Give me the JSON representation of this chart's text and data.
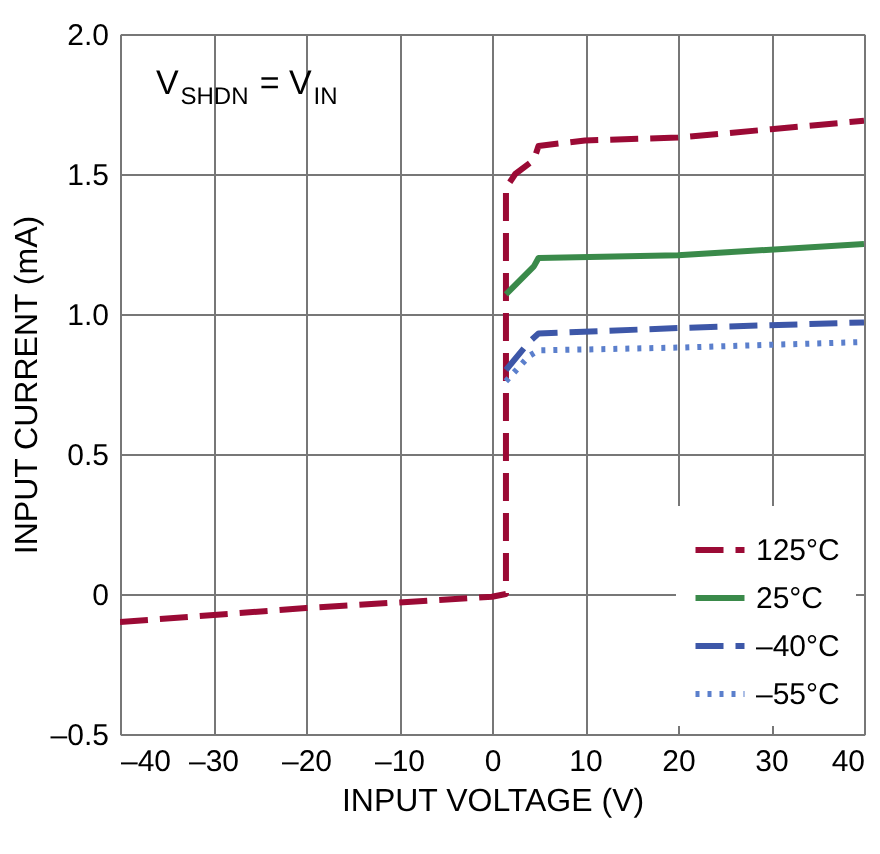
{
  "chart_data": {
    "type": "line",
    "xlabel": "INPUT VOLTAGE (V)",
    "ylabel": "INPUT CURRENT (mA)",
    "annotations": [
      "V$_{SHDN}$ = V$_{IN}$"
    ],
    "xlim": [
      -40,
      40
    ],
    "ylim": [
      -0.5,
      2.0
    ],
    "xticks": [
      {
        "value": -40,
        "label": "–40"
      },
      {
        "value": -30,
        "label": "–30"
      },
      {
        "value": -20,
        "label": "–20"
      },
      {
        "value": -10,
        "label": "–10"
      },
      0,
      10,
      20,
      30,
      40
    ],
    "yticks": [
      {
        "value": -0.5,
        "label": "–0.5"
      },
      0,
      0.5,
      {
        "value": 1,
        "label": "1.0"
      },
      1.5,
      {
        "value": 2,
        "label": "2.0"
      }
    ],
    "grid": true,
    "legend": "bottom right",
    "marker": "none",
    "series": [
      {
        "name": "125°C",
        "color": "#9b0a35",
        "line_style": "dashed",
        "x": [
          -40,
          -20,
          0,
          1.5,
          1.5,
          2.5,
          4.5,
          5,
          10,
          20,
          30,
          40
        ],
        "values": [
          -0.1,
          -0.05,
          -0.01,
          0,
          1.45,
          1.5,
          1.55,
          1.6,
          1.62,
          1.63,
          1.66,
          1.69
        ]
      },
      {
        "name": "25°C",
        "color": "#3a8a4a",
        "line_style": "solid",
        "x": [
          1.5,
          4.5,
          5,
          20,
          40
        ],
        "values": [
          1.07,
          1.17,
          1.2,
          1.21,
          1.25
        ]
      },
      {
        "name": "–40°C",
        "color": "#3d57a8",
        "line_style": "dashed",
        "x": [
          1.5,
          4,
          5,
          20,
          40
        ],
        "values": [
          0.8,
          0.9,
          0.93,
          0.95,
          0.97
        ]
      },
      {
        "name": "–55°C",
        "color": "#5b7fcc",
        "line_style": "dotted",
        "x": [
          1.5,
          4,
          5,
          20,
          40
        ],
        "values": [
          0.76,
          0.85,
          0.87,
          0.88,
          0.9
        ]
      }
    ]
  }
}
